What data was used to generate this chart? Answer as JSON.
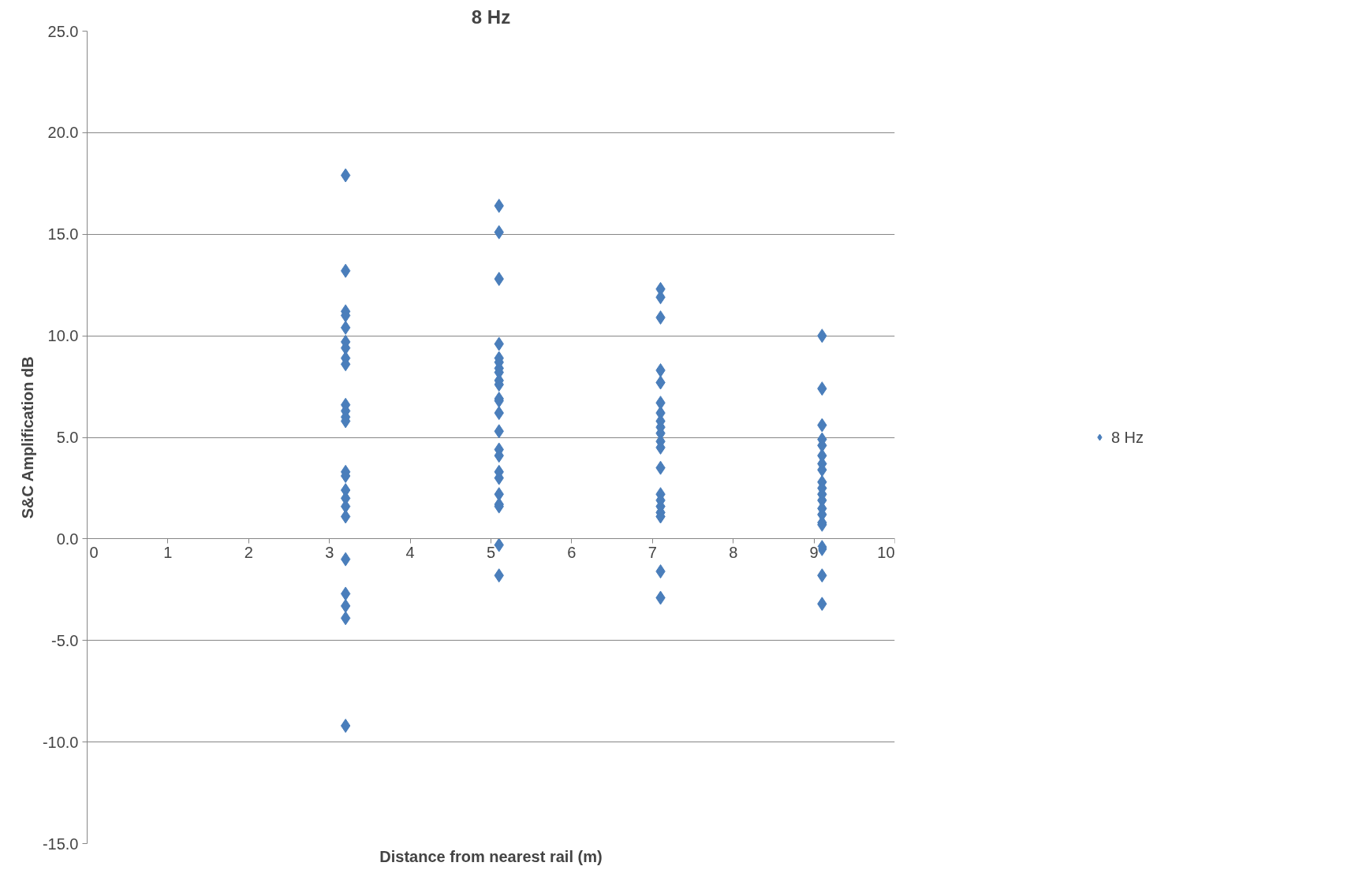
{
  "chart_data": {
    "type": "scatter",
    "title": "8 Hz",
    "xlabel": "Distance from nearest rail (m)",
    "ylabel": "S&C Amplification dB",
    "series": [
      {
        "name": "8 Hz",
        "color": "#4a7ebb",
        "x": [
          3.2,
          3.2,
          3.2,
          3.2,
          3.2,
          3.2,
          3.2,
          3.2,
          3.2,
          3.2,
          3.2,
          3.2,
          3.2,
          3.2,
          3.2,
          3.2,
          3.2,
          3.2,
          3.2,
          3.2,
          3.2,
          3.2,
          3.2,
          3.2,
          5.1,
          5.1,
          5.1,
          5.1,
          5.1,
          5.1,
          5.1,
          5.1,
          5.1,
          5.1,
          5.1,
          5.1,
          5.1,
          5.1,
          5.1,
          5.1,
          5.1,
          5.1,
          5.1,
          5.1,
          5.1,
          5.1,
          5.1,
          7.1,
          7.1,
          7.1,
          7.1,
          7.1,
          7.1,
          7.1,
          7.1,
          7.1,
          7.1,
          7.1,
          7.1,
          7.1,
          7.1,
          7.1,
          7.1,
          7.1,
          7.1,
          7.1,
          7.1,
          9.1,
          9.1,
          9.1,
          9.1,
          9.1,
          9.1,
          9.1,
          9.1,
          9.1,
          9.1,
          9.1,
          9.1,
          9.1,
          9.1,
          9.1,
          9.1,
          9.1,
          9.1,
          9.1,
          9.1
        ],
        "values": [
          17.9,
          13.2,
          11.2,
          11.0,
          10.4,
          9.7,
          9.4,
          8.9,
          8.6,
          6.6,
          6.3,
          6.0,
          5.8,
          3.3,
          3.1,
          2.4,
          2.0,
          1.6,
          1.1,
          -1.0,
          -2.7,
          -3.3,
          -3.9,
          -9.2,
          16.4,
          15.1,
          12.8,
          9.6,
          8.9,
          8.7,
          8.4,
          8.2,
          7.8,
          7.6,
          6.9,
          6.8,
          6.2,
          5.3,
          4.4,
          4.1,
          3.3,
          3.0,
          2.2,
          1.7,
          1.6,
          -0.3,
          -1.8,
          12.3,
          11.9,
          10.9,
          8.3,
          7.7,
          6.7,
          6.2,
          5.8,
          5.5,
          5.2,
          4.8,
          4.5,
          3.5,
          2.2,
          1.9,
          1.6,
          1.3,
          1.1,
          -1.6,
          -2.9,
          10.0,
          7.4,
          5.6,
          4.9,
          4.6,
          4.1,
          3.7,
          3.4,
          2.8,
          2.5,
          2.2,
          1.9,
          1.5,
          1.2,
          0.8,
          0.7,
          -0.4,
          -0.5,
          -1.8,
          -3.2
        ]
      }
    ],
    "xlim": [
      0,
      10
    ],
    "xticks": [
      0,
      1,
      2,
      3,
      4,
      5,
      6,
      7,
      8,
      9,
      10
    ],
    "ylim": [
      -15,
      25
    ],
    "yticks": [
      {
        "value": -15,
        "label": "-15.0"
      },
      {
        "value": -10,
        "label": "-10.0"
      },
      {
        "value": -5,
        "label": "-5.0"
      },
      {
        "value": 0,
        "label": "0.0"
      },
      {
        "value": 5,
        "label": "5.0"
      },
      {
        "value": 10,
        "label": "10.0"
      },
      {
        "value": 15,
        "label": "15.0"
      },
      {
        "value": 20,
        "label": "20.0"
      },
      {
        "value": 25,
        "label": "25.0"
      }
    ],
    "grid": "y",
    "legend": "right",
    "marker": "diamond"
  }
}
